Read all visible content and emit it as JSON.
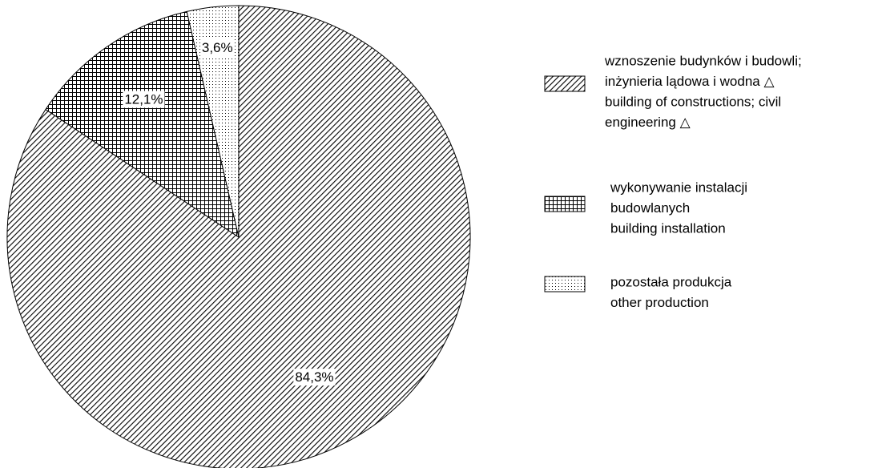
{
  "chart_data": {
    "type": "pie",
    "series": [
      {
        "name": [
          "wznoszenie budynków i budowli;",
          "inżynieria lądowa i wodna △",
          "building of constructions; civil",
          "engineering △"
        ],
        "values": [
          84.3
        ],
        "value_labels": [
          "84,3%"
        ]
      },
      {
        "name": [
          "wykonywanie instalacji",
          "budowlanych",
          "building installation"
        ],
        "values": [
          12.1
        ],
        "value_labels": [
          "12,1%"
        ]
      },
      {
        "name": [
          "pozostała produkcja",
          "other production"
        ],
        "values": [
          3.6
        ],
        "value_labels": [
          "3,6%"
        ]
      }
    ]
  }
}
